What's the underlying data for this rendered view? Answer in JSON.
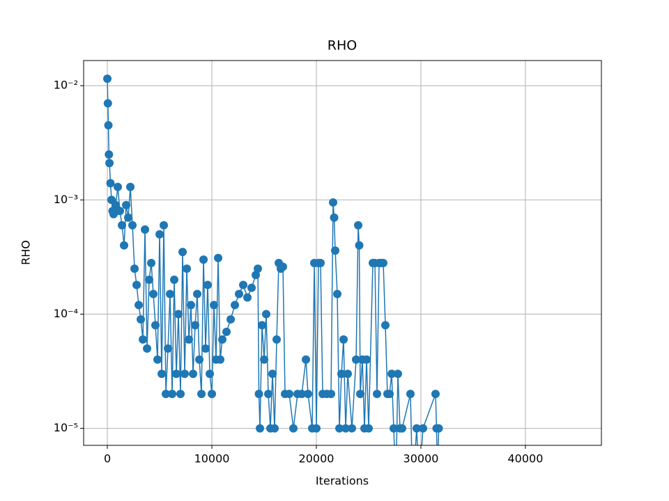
{
  "chart_data": {
    "type": "line",
    "title": "RHO",
    "x_label": "Iterations",
    "y_label": "RHO",
    "log_y": true,
    "grid": true,
    "color": "#1f77b4",
    "xlim": [
      -2270,
      47270
    ],
    "xticks": [
      0,
      10000,
      20000,
      30000,
      40000
    ],
    "ylim": [
      7.1e-06,
      0.0166
    ],
    "yticks": [
      {
        "value": 1e-05,
        "label": "10⁻⁵"
      },
      {
        "value": 0.0001,
        "label": "10⁻⁴"
      },
      {
        "value": 0.001,
        "label": "10⁻³"
      },
      {
        "value": 0.01,
        "label": "10⁻²"
      }
    ],
    "x": [
      0,
      50,
      100,
      150,
      200,
      300,
      400,
      500,
      600,
      800,
      1000,
      1200,
      1400,
      1600,
      1800,
      2000,
      2200,
      2400,
      2600,
      2800,
      3000,
      3200,
      3400,
      3600,
      3800,
      4000,
      4200,
      4400,
      4600,
      4800,
      5000,
      5200,
      5400,
      5600,
      5800,
      6000,
      6200,
      6400,
      6600,
      6800,
      7000,
      7200,
      7400,
      7600,
      7800,
      8000,
      8200,
      8400,
      8600,
      8800,
      9000,
      9200,
      9400,
      9600,
      9800,
      10000,
      10200,
      10400,
      10600,
      10800,
      11000,
      11400,
      11800,
      12200,
      12600,
      13000,
      13400,
      13800,
      14200,
      14400,
      14500,
      14600,
      14800,
      15000,
      15200,
      15400,
      15600,
      15800,
      16000,
      16200,
      16400,
      16600,
      16800,
      17000,
      17400,
      17800,
      18200,
      18600,
      19000,
      19200,
      19600,
      19800,
      20000,
      20200,
      20400,
      20600,
      21000,
      21400,
      21600,
      21700,
      21800,
      22000,
      22200,
      22400,
      22600,
      22800,
      23000,
      23400,
      23800,
      24000,
      24100,
      24200,
      24400,
      24600,
      24800,
      25000,
      25400,
      25600,
      25800,
      26000,
      26200,
      26400,
      26600,
      26800,
      27000,
      27200,
      27400,
      27600,
      27800,
      28000,
      28200,
      29000,
      29200,
      29600,
      29800,
      30200,
      31400,
      31500,
      31600,
      31700
    ],
    "values": [
      0.0115,
      0.007,
      0.0045,
      0.0025,
      0.0021,
      0.0014,
      0.001,
      0.0008,
      0.00075,
      0.0009,
      0.0013,
      0.0008,
      0.0006,
      0.0004,
      0.0009,
      0.0007,
      0.0013,
      0.0006,
      0.00025,
      0.00018,
      0.00012,
      9e-05,
      6e-05,
      0.00055,
      5e-05,
      0.0002,
      0.00028,
      0.00015,
      8e-05,
      4e-05,
      0.0005,
      3e-05,
      0.0006,
      2e-05,
      5e-05,
      0.00015,
      2e-05,
      0.0002,
      3e-05,
      0.0001,
      2e-05,
      0.00035,
      3e-05,
      0.00025,
      6e-05,
      0.00012,
      3e-05,
      8e-05,
      0.00015,
      4e-05,
      2e-05,
      0.0003,
      5e-05,
      0.00018,
      3e-05,
      2e-05,
      0.00012,
      4e-05,
      0.00031,
      4e-05,
      6e-05,
      7e-05,
      9e-05,
      0.00012,
      0.00015,
      0.00018,
      0.00014,
      0.00017,
      0.00022,
      0.00025,
      2e-05,
      1e-05,
      8e-05,
      4e-05,
      0.0001,
      2e-05,
      1e-05,
      3e-05,
      1e-05,
      6e-05,
      0.00028,
      0.00025,
      0.00026,
      2e-05,
      2e-05,
      1e-05,
      2e-05,
      2e-05,
      4e-05,
      2e-05,
      1e-05,
      0.00028,
      1e-05,
      0.00028,
      0.00028,
      2e-05,
      2e-05,
      2e-05,
      0.00095,
      0.0007,
      0.00036,
      0.00015,
      1e-05,
      3e-05,
      6e-05,
      1e-05,
      3e-05,
      1e-05,
      4e-05,
      0.0006,
      0.0004,
      2e-05,
      4e-05,
      1e-05,
      4e-05,
      1e-05,
      0.00028,
      0.00028,
      2e-05,
      0.00028,
      0.00028,
      0.00028,
      8e-05,
      2e-05,
      2e-05,
      3e-05,
      1e-05,
      3e-06,
      3e-05,
      1e-05,
      1e-05,
      2e-05,
      3e-06,
      1e-05,
      3e-06,
      1e-05,
      2e-05,
      1e-05,
      3e-06,
      1e-05
    ]
  }
}
